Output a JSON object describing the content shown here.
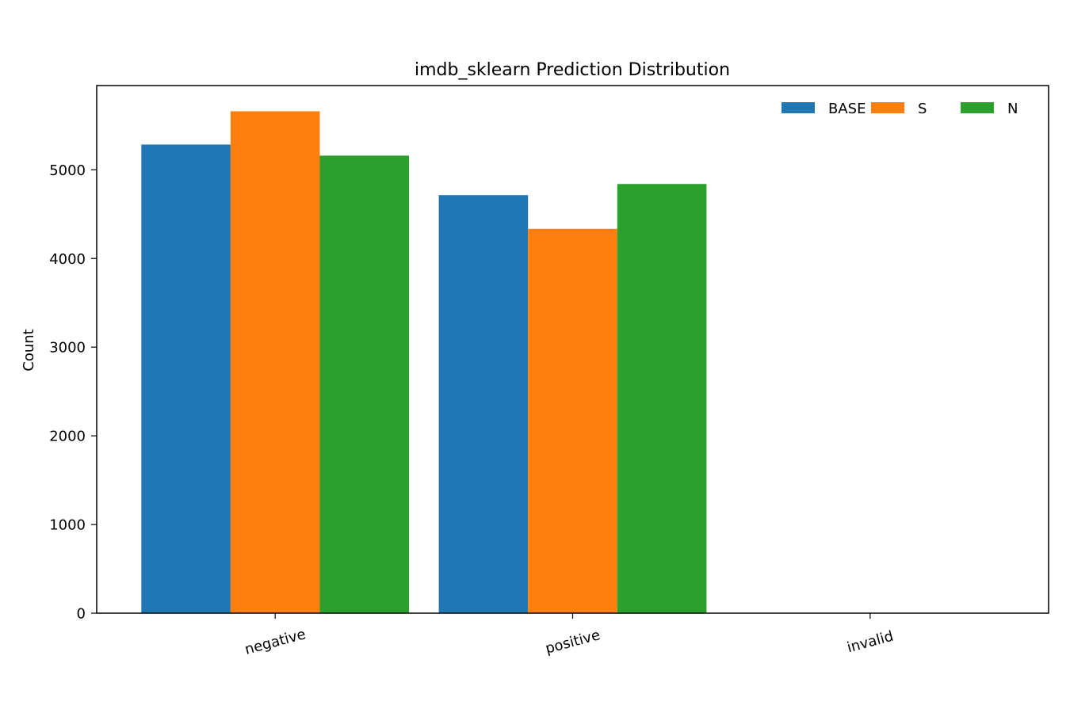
{
  "chart_data": {
    "type": "bar",
    "title": "imdb_sklearn Prediction Distribution",
    "xlabel": "",
    "ylabel": "Count",
    "categories": [
      "negative",
      "positive",
      "invalid"
    ],
    "series": [
      {
        "name": "BASE",
        "color": "#1f77b4",
        "values": [
          5285,
          4715,
          0
        ]
      },
      {
        "name": "S",
        "color": "#ff7f0e",
        "values": [
          5660,
          4335,
          0
        ]
      },
      {
        "name": "N",
        "color": "#2ca02c",
        "values": [
          5160,
          4840,
          0
        ]
      }
    ],
    "ylim": [
      0,
      5950
    ],
    "yticks": [
      0,
      1000,
      2000,
      3000,
      4000,
      5000
    ],
    "ytick_labels": [
      "0",
      "1000",
      "2000",
      "3000",
      "4000",
      "5000"
    ],
    "grid": false,
    "legend": "top-right",
    "xtick_rotation_deg": -15
  }
}
